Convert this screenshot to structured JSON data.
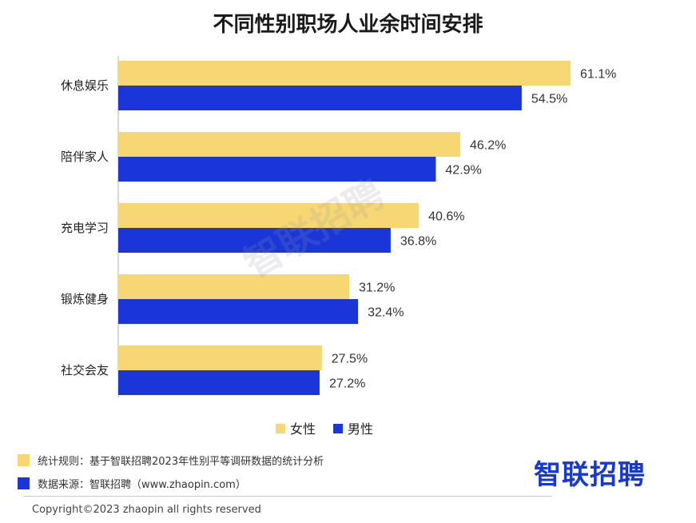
{
  "chart_data": {
    "type": "bar",
    "orientation": "horizontal",
    "title": "不同性别职场人业余时间安排",
    "categories": [
      "休息娱乐",
      "陪伴家人",
      "充电学习",
      "锻炼健身",
      "社交会友"
    ],
    "series": [
      {
        "name": "女性",
        "color": "#f7d774",
        "values": [
          61.1,
          46.2,
          40.6,
          31.2,
          27.5
        ],
        "labels": [
          "61.1%",
          "46.2%",
          "40.6%",
          "31.2%",
          "27.5%"
        ]
      },
      {
        "name": "男性",
        "color": "#1a36d8",
        "values": [
          54.5,
          42.9,
          36.8,
          32.4,
          27.2
        ],
        "labels": [
          "54.5%",
          "42.9%",
          "36.8%",
          "32.4%",
          "27.2%"
        ]
      }
    ],
    "xlim": [
      0,
      61.1
    ],
    "legend_position": "bottom",
    "grid": false
  },
  "footer": {
    "rule_label": "统计规则：基于智联招聘2023年性别平等调研数据的统计分析",
    "rule_color": "#f7d774",
    "source_label": "数据来源：智联招聘（www.zhaopin.com）",
    "source_color": "#1a36d8",
    "brand": "智联招聘",
    "copyright": "Copyright©2023 zhaopin all rights reserved"
  },
  "watermark": "智联招聘"
}
